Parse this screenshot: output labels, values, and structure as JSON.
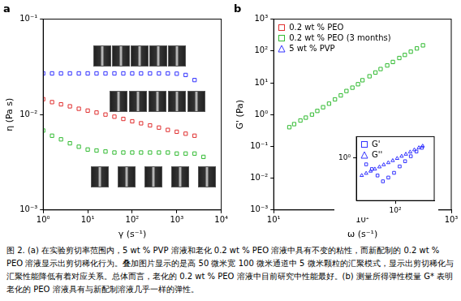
{
  "chart_data": [
    {
      "type": "scatter",
      "title": "a",
      "xlabel": "γ (s⁻¹)",
      "ylabel": "η (Pa s)",
      "log": true,
      "grid": false,
      "xlim": [
        1,
        10000
      ],
      "xticks": [
        {
          "value": 1,
          "label": "10⁰"
        },
        {
          "value": 10,
          "label": "10¹"
        },
        {
          "value": 100,
          "label": "10²"
        },
        {
          "value": 1000,
          "label": "10³"
        },
        {
          "value": 10000,
          "label": "10⁴"
        }
      ],
      "ylim": [
        0.001,
        0.1
      ],
      "yticks": [
        {
          "value": 0.001,
          "label": "10⁻³"
        },
        {
          "value": 0.01,
          "label": "10⁻²"
        },
        {
          "value": 0.1,
          "label": "10⁻¹"
        }
      ],
      "series": [
        {
          "name": "5 wt % PVP",
          "color": "#3333ff",
          "marker": "square",
          "x": [
            1,
            1.58,
            2.51,
            3.98,
            6.31,
            10,
            15.8,
            25.1,
            39.8,
            63.1,
            100,
            158,
            251,
            398,
            631,
            1000,
            1585,
            2512
          ],
          "values": [
            0.027,
            0.027,
            0.027,
            0.027,
            0.027,
            0.027,
            0.027,
            0.027,
            0.027,
            0.027,
            0.027,
            0.027,
            0.027,
            0.027,
            0.027,
            0.0268,
            0.026,
            0.023
          ]
        },
        {
          "name": "0.2 wt % PEO",
          "color": "#e03030",
          "marker": "square",
          "x": [
            1,
            1.58,
            2.51,
            3.98,
            6.31,
            10,
            15.8,
            25.1,
            39.8,
            63.1,
            100,
            158,
            251,
            398,
            631,
            1000,
            1585,
            2512
          ],
          "values": [
            0.0145,
            0.0135,
            0.0128,
            0.0122,
            0.0115,
            0.011,
            0.0105,
            0.01,
            0.0095,
            0.009,
            0.0085,
            0.0081,
            0.0077,
            0.0073,
            0.0069,
            0.0066,
            0.0063,
            0.006
          ]
        },
        {
          "name": "0.2 wt % PEO (3 months)",
          "color": "#33bb33",
          "marker": "square",
          "x": [
            1,
            1.58,
            2.51,
            3.98,
            6.31,
            10,
            15.8,
            25.1,
            39.8,
            63.1,
            100,
            158,
            251,
            398,
            631,
            1000,
            1585,
            2512,
            3981
          ],
          "values": [
            0.0068,
            0.006,
            0.0055,
            0.005,
            0.0046,
            0.0043,
            0.0042,
            0.0041,
            0.004,
            0.004,
            0.004,
            0.004,
            0.004,
            0.004,
            0.004,
            0.0039,
            0.0039,
            0.0039,
            0.0036
          ]
        }
      ]
    },
    {
      "type": "scatter",
      "title": "b",
      "xlabel": "ω (s⁻¹)",
      "ylabel": "G' (Pa)",
      "log": true,
      "grid": false,
      "legend": "top-left",
      "xlim": [
        10,
        1000
      ],
      "xticks": [
        {
          "value": 10,
          "label": "10¹"
        },
        {
          "value": 100,
          "label": "10²"
        },
        {
          "value": 1000,
          "label": "10³"
        }
      ],
      "ylim": [
        0.001,
        1000
      ],
      "yticks": [
        {
          "value": 0.001,
          "label": "10⁻³"
        },
        {
          "value": 0.01,
          "label": "10⁻²"
        },
        {
          "value": 0.1,
          "label": "10⁻¹"
        },
        {
          "value": 1,
          "label": "10⁰"
        },
        {
          "value": 10,
          "label": "10¹"
        },
        {
          "value": 100,
          "label": "10²"
        },
        {
          "value": 1000,
          "label": "10³"
        }
      ],
      "series": [
        {
          "name": "0.2 wt % PEO",
          "color": "#e03030",
          "marker": "square",
          "x": [],
          "values": []
        },
        {
          "name": "0.2 wt % PEO (3 months)",
          "color": "#33bb33",
          "marker": "square",
          "x": [
            15,
            17,
            20,
            23,
            27,
            31,
            36,
            42,
            49,
            57,
            66,
            77,
            89,
            100,
            120,
            140,
            160,
            190,
            220,
            260,
            300,
            350,
            410,
            480
          ],
          "values": [
            0.4,
            0.5,
            0.65,
            0.8,
            1,
            1.3,
            1.7,
            2.2,
            3,
            4,
            5.5,
            7,
            9,
            12,
            16,
            21,
            27,
            35,
            45,
            60,
            75,
            95,
            120,
            150
          ]
        },
        {
          "name": "5 wt % PVP",
          "color": "#3333ff",
          "marker": "triangle",
          "x": [],
          "values": []
        }
      ]
    },
    {
      "type": "scatter",
      "log": true,
      "grid": false,
      "legend": "top-left",
      "xlim": [
        20,
        500
      ],
      "xticks": [
        {
          "value": 100,
          "label": "10²"
        }
      ],
      "ylim": [
        0.01,
        10
      ],
      "yticks": [
        {
          "value": 1,
          "label": "10⁰"
        }
      ],
      "series": [
        {
          "name": "G'",
          "color": "#3333ff",
          "marker": "square",
          "x": [
            30,
            38,
            48,
            60,
            75,
            95,
            120,
            150,
            190,
            240,
            300
          ],
          "values": [
            0.5,
            0.3,
            0.15,
            0.08,
            0.12,
            0.2,
            0.4,
            0.7,
            1.2,
            2,
            3
          ]
        },
        {
          "name": "G''",
          "color": "#3333ff",
          "marker": "triangle",
          "x": [
            25,
            30,
            36,
            43,
            52,
            62,
            75,
            90,
            108,
            130,
            155,
            185,
            220,
            265,
            310
          ],
          "values": [
            0.15,
            0.19,
            0.24,
            0.3,
            0.38,
            0.48,
            0.6,
            0.75,
            0.95,
            1.2,
            1.5,
            1.9,
            2.4,
            3,
            3.6
          ]
        }
      ]
    }
  ],
  "caption": "图 2. (a) 在实验剪切率范围内，5 wt % PVP 溶液和老化 0.2 wt % PEO 溶液中具有不变的粘性，而新配制的 0.2 wt % PEO 溶液显示出剪切稀化行为。叠加图片显示的是高 50 微米宽 100 微米通道中 5 微米颗粒的汇聚模式，显示出剪切稀化与汇聚性能降低有着对应关系。总体而言，老化的 0.2 wt % PEO 溶液中目前研究中性能最好。(b) 测量所得弹性模量 G* 表明老化的 PEO 溶液具有与新配制溶液几乎一样的弹性。"
}
